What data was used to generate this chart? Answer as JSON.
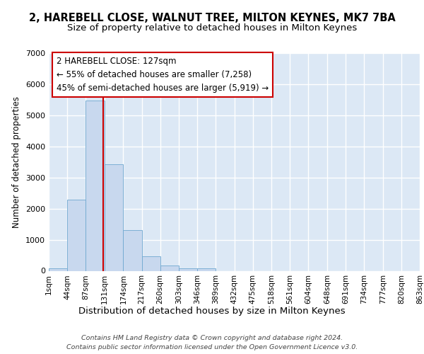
{
  "title": "2, HAREBELL CLOSE, WALNUT TREE, MILTON KEYNES, MK7 7BA",
  "subtitle": "Size of property relative to detached houses in Milton Keynes",
  "xlabel": "Distribution of detached houses by size in Milton Keynes",
  "ylabel": "Number of detached properties",
  "bin_edges": [
    1,
    44,
    87,
    131,
    174,
    217,
    260,
    303,
    346,
    389,
    432,
    475,
    518,
    561,
    604,
    648,
    691,
    734,
    777,
    820,
    863
  ],
  "bar_heights": [
    75,
    2280,
    5480,
    3430,
    1320,
    460,
    160,
    90,
    80,
    0,
    0,
    0,
    0,
    0,
    0,
    0,
    0,
    0,
    0,
    0
  ],
  "bar_color": "#c8d8ee",
  "bar_edge_color": "#6fa8d0",
  "vline_x": 127,
  "vline_color": "#cc0000",
  "ylim": [
    0,
    7000
  ],
  "annotation_line1": "2 HAREBELL CLOSE: 127sqm",
  "annotation_line2": "← 55% of detached houses are smaller (7,258)",
  "annotation_line3": "45% of semi-detached houses are larger (5,919) →",
  "annotation_box_color": "#ffffff",
  "annotation_box_edge": "#cc0000",
  "footer_line1": "Contains HM Land Registry data © Crown copyright and database right 2024.",
  "footer_line2": "Contains public sector information licensed under the Open Government Licence v3.0.",
  "background_color": "#dce8f5",
  "grid_color": "#ffffff",
  "fig_bg": "#ffffff",
  "tick_labels": [
    "1sqm",
    "44sqm",
    "87sqm",
    "131sqm",
    "174sqm",
    "217sqm",
    "260sqm",
    "303sqm",
    "346sqm",
    "389sqm",
    "432sqm",
    "475sqm",
    "518sqm",
    "561sqm",
    "604sqm",
    "648sqm",
    "691sqm",
    "734sqm",
    "777sqm",
    "820sqm",
    "863sqm"
  ],
  "title_fontsize": 10.5,
  "subtitle_fontsize": 9.5,
  "xlabel_fontsize": 9.5,
  "ylabel_fontsize": 8.5,
  "tick_fontsize": 7.5,
  "annotation_fontsize": 8.5,
  "footer_fontsize": 6.8
}
